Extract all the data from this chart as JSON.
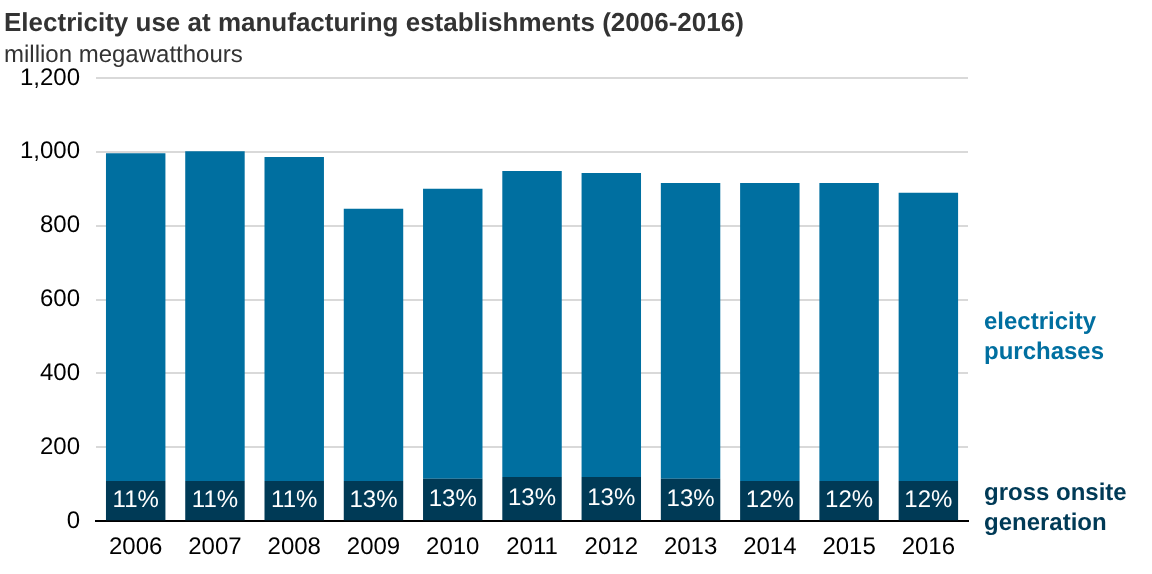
{
  "chart_data": {
    "type": "bar",
    "title": "Electricity use at manufacturing establishments (2006-2016)",
    "subtitle": "million megawatthours",
    "categories": [
      "2006",
      "2007",
      "2008",
      "2009",
      "2010",
      "2011",
      "2012",
      "2013",
      "2014",
      "2015",
      "2016"
    ],
    "stacked": true,
    "ylim": [
      0,
      1200
    ],
    "yticks": [
      0,
      {
        "value": 200,
        "label": "200"
      },
      {
        "value": 400,
        "label": "400"
      },
      {
        "value": 600,
        "label": "600"
      },
      {
        "value": 800,
        "label": "800"
      },
      {
        "value": 1000,
        "label": "1,000"
      },
      {
        "value": 1200,
        "label": "1,200"
      }
    ],
    "grid": "y",
    "legend": false,
    "annotations": [
      "11%",
      "11%",
      "11%",
      "13%",
      "13%",
      "13%",
      "13%",
      "13%",
      "12%",
      "12%",
      "12%"
    ],
    "series": [
      {
        "name": "gross onsite generation",
        "color": "#003a56",
        "values": [
          109,
          109,
          109,
          109,
          115,
          120,
          120,
          115,
          109,
          109,
          109
        ]
      },
      {
        "name": "electricity purchases",
        "color": "#006fa0",
        "values": [
          887,
          893,
          877,
          737,
          785,
          828,
          823,
          801,
          807,
          807,
          780
        ]
      }
    ]
  }
}
